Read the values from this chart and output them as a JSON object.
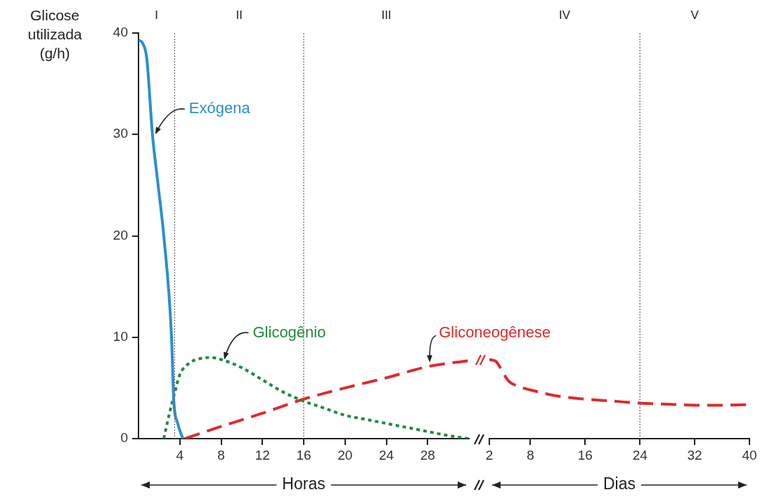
{
  "chart_data": [
    {
      "type": "line",
      "ylabel": "Glicose utilizada (g/h)",
      "xlabel": "Horas",
      "xlim": [
        0,
        32
      ],
      "xticks": [
        4,
        8,
        12,
        16,
        20,
        24,
        28
      ],
      "ylim": [
        0,
        40
      ],
      "yticks": [
        0,
        10,
        20,
        30,
        40
      ],
      "marker": "none",
      "ref_lines": [
        {
          "axis": "x",
          "value": 3.5,
          "line_style": "dotted"
        },
        {
          "axis": "x",
          "value": 16,
          "line_style": "dotted"
        }
      ],
      "annotations": [
        "I",
        "II",
        "III"
      ],
      "series": [
        {
          "name": "Exógena",
          "color": "#2b8fd0",
          "line_style": "solid",
          "x": [
            0,
            0.4,
            0.8,
            1.35,
            1.9,
            2.45,
            3.2,
            3.4,
            3.8,
            4.3
          ],
          "values": [
            39.3,
            39,
            37.5,
            30,
            25,
            20,
            10,
            4,
            1.5,
            0
          ]
        },
        {
          "name": "Glicogênio",
          "color": "#1f8a3f",
          "line_style": "dotted",
          "x": [
            2.45,
            3,
            3.5,
            4,
            5,
            6,
            7,
            8,
            10,
            12,
            14,
            16,
            18,
            20,
            22,
            24,
            26,
            28,
            30,
            32
          ],
          "values": [
            0,
            2.5,
            4.5,
            6.3,
            7.5,
            7.9,
            8,
            7.8,
            7,
            5.8,
            4.6,
            3.7,
            3,
            2.3,
            1.9,
            1.5,
            1.1,
            0.7,
            0.3,
            0
          ]
        },
        {
          "name": "Gliconeogênese",
          "color": "#e02a2a",
          "line_style": "dashed",
          "x": [
            4.5,
            8,
            12,
            16,
            20,
            24,
            28,
            32
          ],
          "values": [
            0,
            1.2,
            2.5,
            3.9,
            5,
            6,
            7.1,
            7.7
          ]
        }
      ]
    },
    {
      "type": "line",
      "xlabel": "Dias",
      "xlim": [
        2,
        40
      ],
      "xticks": [
        2,
        8,
        16,
        24,
        32,
        40
      ],
      "ylim": [
        0,
        40
      ],
      "tick_labels": "x",
      "marker": "none",
      "ref_lines": [
        {
          "axis": "x",
          "value": 24,
          "line_style": "dotted"
        }
      ],
      "annotations": [
        "IV",
        "V"
      ],
      "series": [
        {
          "color": "#e02a2a",
          "line_style": "dashed",
          "x": [
            2,
            3,
            3.6,
            4.8,
            6.5,
            8,
            12,
            16,
            20,
            24,
            28,
            32,
            36,
            40
          ],
          "values": [
            7.8,
            7.6,
            7,
            5.7,
            5.1,
            4.8,
            4.2,
            3.9,
            3.7,
            3.5,
            3.4,
            3.3,
            3.3,
            3.35
          ]
        }
      ]
    }
  ]
}
